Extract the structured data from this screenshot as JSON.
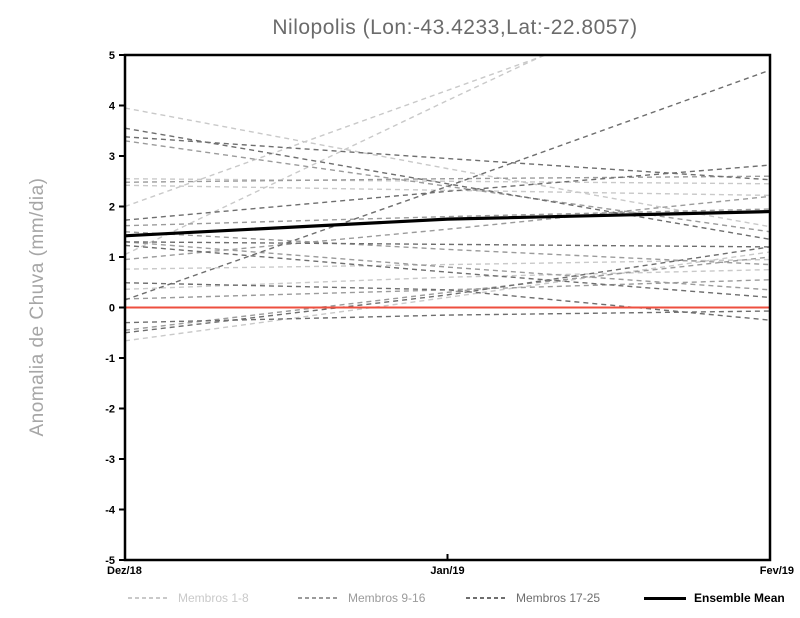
{
  "header": {
    "title": "Nilopolis (Lon:-43.4233,Lat:-22.8057)"
  },
  "y_axis": {
    "label": "Anomalia de Chuva (mm/dia)",
    "ticks": [
      "5",
      "4",
      "3",
      "2",
      "1",
      "0",
      "-1",
      "-2",
      "-3",
      "-4",
      "-5"
    ],
    "min": -5,
    "max": 5
  },
  "x_axis": {
    "ticks": [
      "Dez/18",
      "Jan/19",
      "Fev/19"
    ]
  },
  "legend": {
    "items": [
      {
        "label": "Membros 1-8",
        "color": "#c9c9c9",
        "style": "dashed"
      },
      {
        "label": "Membros 9-16",
        "color": "#9b9b9b",
        "style": "dashed"
      },
      {
        "label": "Membros 17-25",
        "color": "#6e6e6e",
        "style": "dashed"
      },
      {
        "label": "Ensemble Mean",
        "color": "#000000",
        "style": "solid"
      }
    ]
  },
  "colors": {
    "title": "#6b6b6b",
    "axis_label": "#a6a6a6",
    "frame": "#000000",
    "zero_line": "#ee4f3f",
    "members_1_8": "#c9c9c9",
    "members_9_16": "#9b9b9b",
    "members_17_25": "#6e6e6e",
    "ensemble_mean": "#000000"
  },
  "chart_data": {
    "type": "line",
    "title": "Nilopolis (Lon:-43.4233,Lat:-22.8057)",
    "xlabel": "",
    "ylabel": "Anomalia de Chuva (mm/dia)",
    "x": [
      "Dez/18",
      "Jan/19",
      "Fev/19"
    ],
    "ylim": [
      -5,
      5
    ],
    "grid": false,
    "legend_position": "bottom",
    "zero_line": 0,
    "series": [
      {
        "name": "Membro 1",
        "group": "1-8",
        "values": [
          3.95,
          2.75,
          1.6
        ]
      },
      {
        "name": "Membro 2",
        "group": "1-8",
        "values": [
          2.55,
          2.5,
          2.45
        ]
      },
      {
        "name": "Membro 3",
        "group": "1-8",
        "values": [
          2.42,
          2.32,
          2.22
        ]
      },
      {
        "name": "Membro 4",
        "group": "1-8",
        "values": [
          2.0,
          4.3,
          6.6
        ]
      },
      {
        "name": "Membro 5",
        "group": "1-8",
        "values": [
          1.05,
          4.1,
          7.1
        ]
      },
      {
        "name": "Membro 6",
        "group": "1-8",
        "values": [
          0.76,
          0.85,
          0.95
        ]
      },
      {
        "name": "Membro 7",
        "group": "1-8",
        "values": [
          0.36,
          0.6,
          0.75
        ]
      },
      {
        "name": "Membro 8",
        "group": "1-8",
        "values": [
          -0.66,
          0.2,
          1.1
        ]
      },
      {
        "name": "Membro 9",
        "group": "9-16",
        "values": [
          3.3,
          2.4,
          1.5
        ]
      },
      {
        "name": "Membro 10",
        "group": "9-16",
        "values": [
          1.62,
          1.8,
          1.95
        ]
      },
      {
        "name": "Membro 11",
        "group": "9-16",
        "values": [
          1.5,
          1.15,
          0.85
        ]
      },
      {
        "name": "Membro 12",
        "group": "9-16",
        "values": [
          0.95,
          1.55,
          2.2
        ]
      },
      {
        "name": "Membro 13",
        "group": "9-16",
        "values": [
          0.17,
          0.35,
          0.55
        ]
      },
      {
        "name": "Membro 14",
        "group": "9-16",
        "values": [
          2.48,
          2.55,
          2.6
        ]
      },
      {
        "name": "Membro 15",
        "group": "9-16",
        "values": [
          -0.45,
          0.3,
          1.0
        ]
      },
      {
        "name": "Membro 16",
        "group": "9-16",
        "values": [
          1.3,
          0.8,
          0.35
        ]
      },
      {
        "name": "Membro 17",
        "group": "17-25",
        "values": [
          3.55,
          2.45,
          1.35
        ]
      },
      {
        "name": "Membro 18",
        "group": "17-25",
        "values": [
          3.38,
          2.95,
          2.53
        ]
      },
      {
        "name": "Membro 19",
        "group": "17-25",
        "values": [
          1.73,
          2.3,
          2.82
        ]
      },
      {
        "name": "Membro 20",
        "group": "17-25",
        "values": [
          0.15,
          2.4,
          4.7
        ]
      },
      {
        "name": "Membro 21",
        "group": "17-25",
        "values": [
          1.3,
          1.25,
          1.2
        ]
      },
      {
        "name": "Membro 22",
        "group": "17-25",
        "values": [
          1.23,
          0.7,
          0.2
        ]
      },
      {
        "name": "Membro 23",
        "group": "17-25",
        "values": [
          0.49,
          0.35,
          -0.25
        ]
      },
      {
        "name": "Membro 24",
        "group": "17-25",
        "values": [
          -0.3,
          -0.15,
          -0.07
        ]
      },
      {
        "name": "Membro 25",
        "group": "17-25",
        "values": [
          -0.5,
          0.25,
          1.2
        ]
      }
    ],
    "ensemble_mean": {
      "name": "Ensemble Mean",
      "values": [
        1.42,
        1.75,
        1.9
      ]
    }
  }
}
